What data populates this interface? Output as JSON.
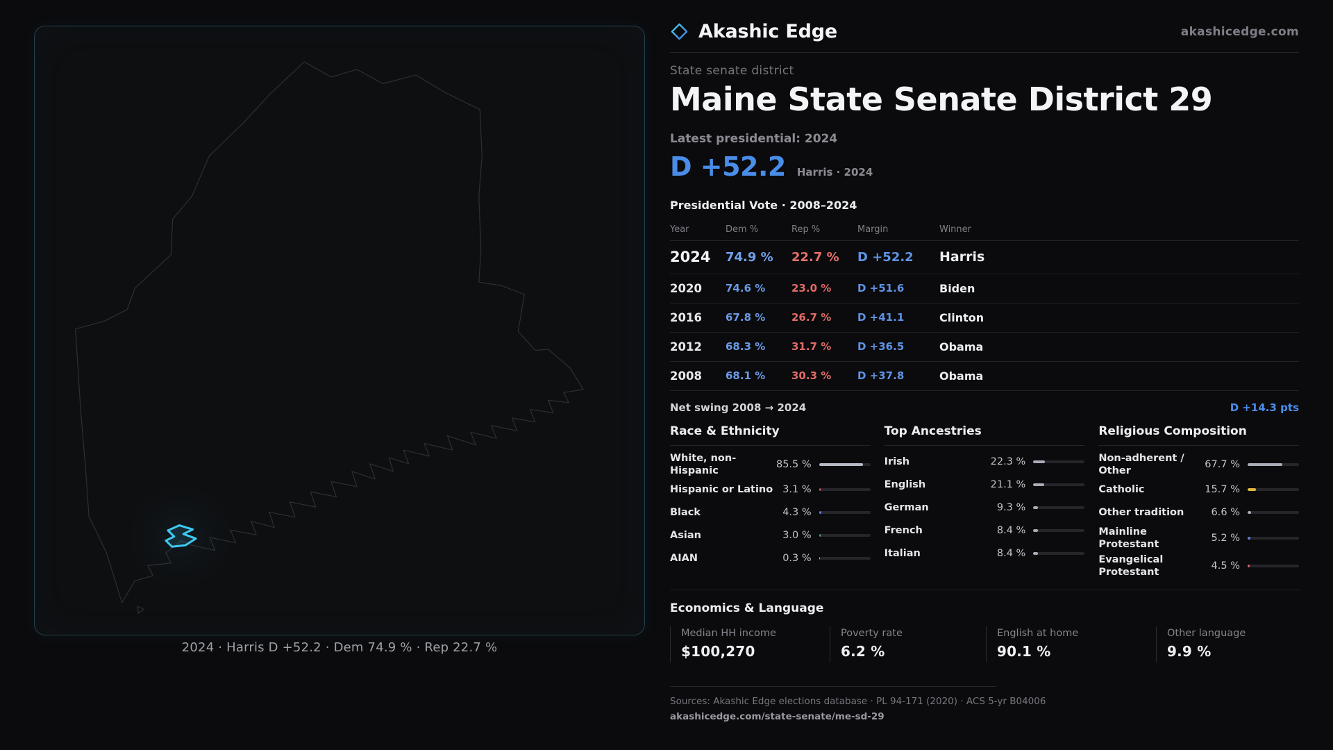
{
  "brand": {
    "name": "Akashic Edge",
    "site": "akashicedge.com",
    "logo_icon": "diamond-outline"
  },
  "colors": {
    "dem_blue": "#5f93e4",
    "rep_red": "#e0655f",
    "accent_cyan": "#3ec9f2",
    "headline_blue": "#4a8de9",
    "background": "#0b0b0d"
  },
  "header": {
    "kicker": "State senate district",
    "title": "Maine State Senate District 29",
    "latest_label": "Latest presidential: 2024",
    "margin_value": "D +52.2",
    "margin_context": "Harris · 2024"
  },
  "map": {
    "caption": "2024 · Harris D +52.2 · Dem 74.9 % · Rep 22.7 %"
  },
  "vote_table": {
    "title": "Presidential Vote · 2008–2024",
    "columns": [
      "Year",
      "Dem %",
      "Rep %",
      "Margin",
      "Winner"
    ],
    "rows": [
      {
        "year": "2024",
        "dem": "74.9 %",
        "rep": "22.7 %",
        "margin": "D +52.2",
        "winner": "Harris"
      },
      {
        "year": "2020",
        "dem": "74.6 %",
        "rep": "23.0 %",
        "margin": "D +51.6",
        "winner": "Biden"
      },
      {
        "year": "2016",
        "dem": "67.8 %",
        "rep": "26.7 %",
        "margin": "D +41.1",
        "winner": "Clinton"
      },
      {
        "year": "2012",
        "dem": "68.3 %",
        "rep": "31.7 %",
        "margin": "D +36.5",
        "winner": "Obama"
      },
      {
        "year": "2008",
        "dem": "68.1 %",
        "rep": "30.3 %",
        "margin": "D +37.8",
        "winner": "Obama"
      }
    ],
    "net_swing_label": "Net swing 2008 → 2024",
    "net_swing_value": "D +14.3 pts"
  },
  "demographics": {
    "sections": [
      {
        "title": "Race & Ethnicity",
        "rows": [
          {
            "label": "White, non-Hispanic",
            "value": "85.5 %",
            "pct": 85.5,
            "color": "#b6bac4"
          },
          {
            "label": "Hispanic or Latino",
            "value": "3.1 %",
            "pct": 3.1,
            "color": "#e0635c"
          },
          {
            "label": "Black",
            "value": "4.3 %",
            "pct": 4.3,
            "color": "#5f7fe0"
          },
          {
            "label": "Asian",
            "value": "3.0 %",
            "pct": 3.0,
            "color": "#3faf7f"
          },
          {
            "label": "AIAN",
            "value": "0.3 %",
            "pct": 0.3,
            "color": "#b6bac4"
          }
        ]
      },
      {
        "title": "Top Ancestries",
        "rows": [
          {
            "label": "Irish",
            "value": "22.3 %",
            "pct": 22.3,
            "color": "#a9adb8"
          },
          {
            "label": "English",
            "value": "21.1 %",
            "pct": 21.1,
            "color": "#a9adb8"
          },
          {
            "label": "German",
            "value": "9.3 %",
            "pct": 9.3,
            "color": "#a9adb8"
          },
          {
            "label": "French",
            "value": "8.4 %",
            "pct": 8.4,
            "color": "#a9adb8"
          },
          {
            "label": "Italian",
            "value": "8.4 %",
            "pct": 8.4,
            "color": "#a9adb8"
          }
        ]
      },
      {
        "title": "Religious Composition",
        "rows": [
          {
            "label": "Non-adherent / Other",
            "value": "67.7 %",
            "pct": 67.7,
            "color": "#a9adb8"
          },
          {
            "label": "Catholic",
            "value": "15.7 %",
            "pct": 15.7,
            "color": "#e0b63f"
          },
          {
            "label": "Other tradition",
            "value": "6.6 %",
            "pct": 6.6,
            "color": "#a9adb8"
          },
          {
            "label": "Mainline Protestant",
            "value": "5.2 %",
            "pct": 5.2,
            "color": "#5f7fe0"
          },
          {
            "label": "Evangelical Protestant",
            "value": "4.5 %",
            "pct": 4.5,
            "color": "#e05b6e"
          }
        ]
      }
    ]
  },
  "economics": {
    "title": "Economics & Language",
    "stats": [
      {
        "label": "Median HH income",
        "value": "$100,270"
      },
      {
        "label": "Poverty rate",
        "value": "6.2 %"
      },
      {
        "label": "English at home",
        "value": "90.1 %"
      },
      {
        "label": "Other language",
        "value": "9.9 %"
      }
    ]
  },
  "footer": {
    "sources": "Sources: Akashic Edge elections database · PL 94-171 (2020) · ACS 5-yr B04006",
    "permalink": "akashicedge.com/state-senate/me-sd-29"
  },
  "chart_data": [
    {
      "type": "table",
      "title": "Presidential Vote · 2008–2024",
      "columns": [
        "Year",
        "Dem %",
        "Rep %",
        "Margin",
        "Winner"
      ],
      "rows": [
        [
          "2024",
          74.9,
          22.7,
          "D +52.2",
          "Harris"
        ],
        [
          "2020",
          74.6,
          23.0,
          "D +51.6",
          "Biden"
        ],
        [
          "2016",
          67.8,
          26.7,
          "D +41.1",
          "Clinton"
        ],
        [
          "2012",
          68.3,
          31.7,
          "D +36.5",
          "Obama"
        ],
        [
          "2008",
          68.1,
          30.3,
          "D +37.8",
          "Obama"
        ]
      ],
      "net_swing": "D +14.3 pts"
    },
    {
      "type": "bar",
      "title": "Race & Ethnicity",
      "categories": [
        "White, non-Hispanic",
        "Hispanic or Latino",
        "Black",
        "Asian",
        "AIAN"
      ],
      "values": [
        85.5,
        3.1,
        4.3,
        3.0,
        0.3
      ],
      "xlabel": "",
      "ylabel": "%",
      "xlim": [
        0,
        100
      ],
      "legend": false
    },
    {
      "type": "bar",
      "title": "Top Ancestries",
      "categories": [
        "Irish",
        "English",
        "German",
        "French",
        "Italian"
      ],
      "values": [
        22.3,
        21.1,
        9.3,
        8.4,
        8.4
      ],
      "xlabel": "",
      "ylabel": "%",
      "xlim": [
        0,
        100
      ],
      "legend": false
    },
    {
      "type": "bar",
      "title": "Religious Composition",
      "categories": [
        "Non-adherent / Other",
        "Catholic",
        "Other tradition",
        "Mainline Protestant",
        "Evangelical Protestant"
      ],
      "values": [
        67.7,
        15.7,
        6.6,
        5.2,
        4.5
      ],
      "xlabel": "",
      "ylabel": "%",
      "xlim": [
        0,
        100
      ],
      "legend": false
    }
  ]
}
